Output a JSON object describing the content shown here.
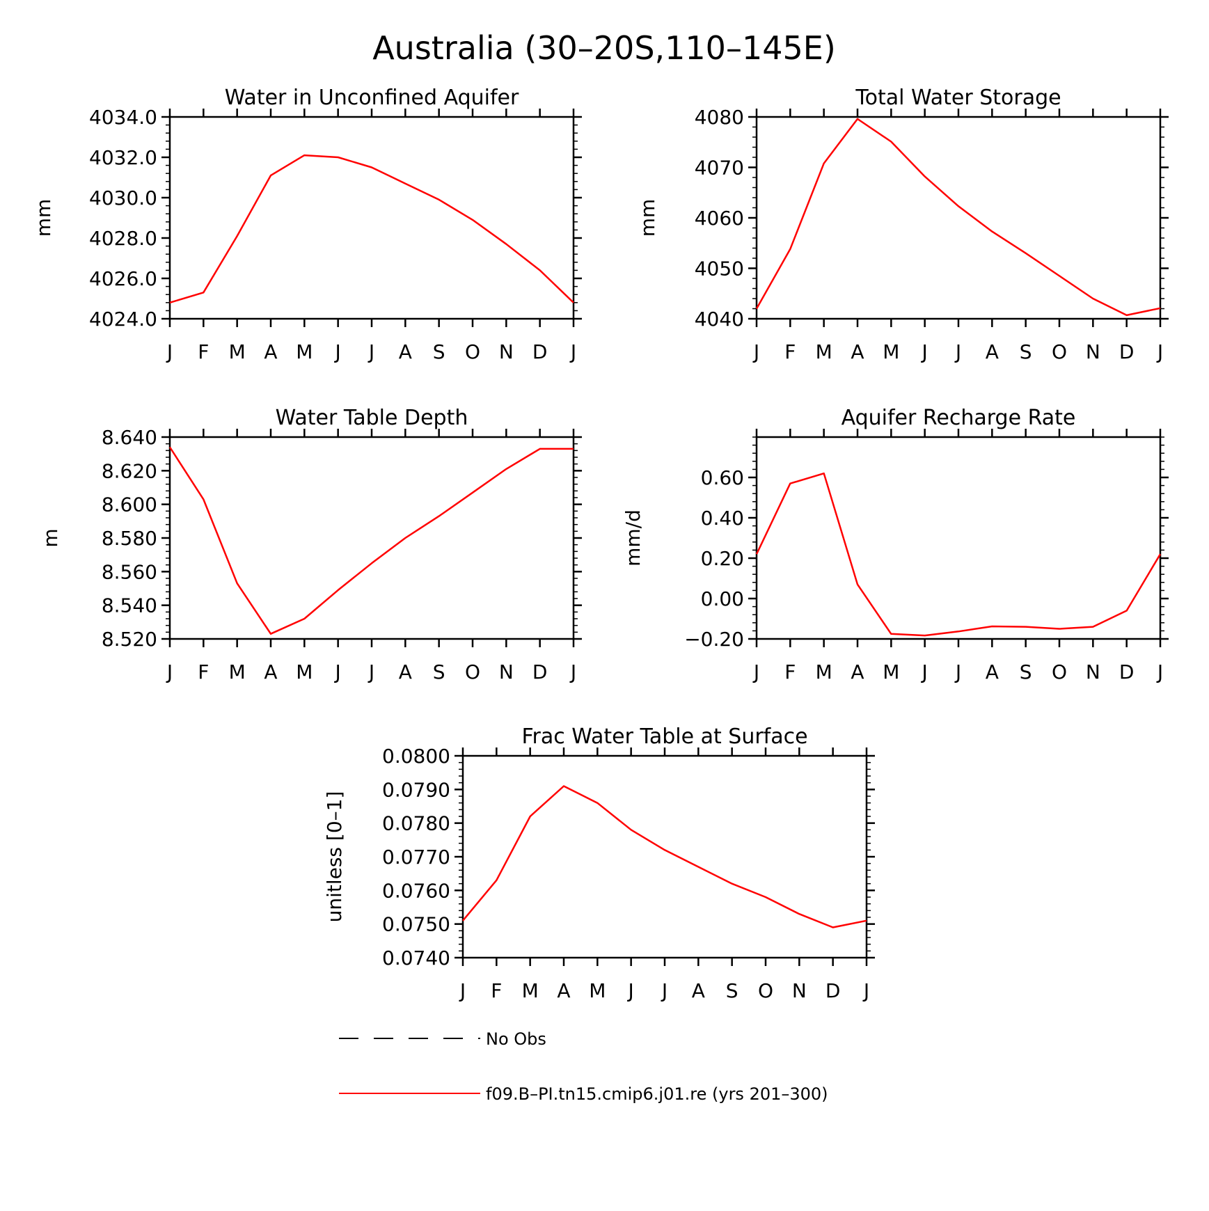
{
  "figure_title": "Australia (30–20S,110–145E)",
  "colors": {
    "model": "#ff0000",
    "obs": "#000000",
    "axis": "#000000"
  },
  "legend": {
    "entries": [
      {
        "label": "No Obs",
        "style": "dashed",
        "color": "#000000"
      },
      {
        "label": "f09.B–PI.tn15.cmip6.j01.re (yrs 201–300)",
        "style": "solid",
        "color": "#ff0000"
      }
    ]
  },
  "chart_data": [
    {
      "type": "line",
      "title": "Water in Unconfined Aquifer",
      "ylabel": "mm",
      "categories": [
        "J",
        "F",
        "M",
        "A",
        "M",
        "J",
        "J",
        "A",
        "S",
        "O",
        "N",
        "D",
        "J"
      ],
      "ylim": [
        4024.0,
        4034.0
      ],
      "yticks": [
        "4024.0",
        "4026.0",
        "4028.0",
        "4030.0",
        "4032.0",
        "4034.0"
      ],
      "series": [
        {
          "values": [
            4024.8,
            4025.3,
            4028.1,
            4031.1,
            4032.1,
            4032.0,
            4031.5,
            4030.7,
            4029.9,
            4028.9,
            4027.7,
            4026.4,
            4024.8
          ]
        }
      ]
    },
    {
      "type": "line",
      "title": "Total Water Storage",
      "ylabel": "mm",
      "categories": [
        "J",
        "F",
        "M",
        "A",
        "M",
        "J",
        "J",
        "A",
        "S",
        "O",
        "N",
        "D",
        "J"
      ],
      "ylim": [
        4040,
        4080
      ],
      "yticks": [
        "4040",
        "4050",
        "4060",
        "4070",
        "4080"
      ],
      "series": [
        {
          "values": [
            4042.0,
            4053.8,
            4070.8,
            4079.6,
            4075.1,
            4068.2,
            4062.3,
            4057.3,
            4053.0,
            4048.5,
            4044.0,
            4040.7,
            4042.1
          ]
        }
      ]
    },
    {
      "type": "line",
      "title": "Water Table Depth",
      "ylabel": "m",
      "categories": [
        "J",
        "F",
        "M",
        "A",
        "M",
        "J",
        "J",
        "A",
        "S",
        "O",
        "N",
        "D",
        "J"
      ],
      "ylim": [
        8.52,
        8.64
      ],
      "yticks": [
        "8.520",
        "8.540",
        "8.560",
        "8.580",
        "8.600",
        "8.620",
        "8.640"
      ],
      "series": [
        {
          "values": [
            8.634,
            8.603,
            8.553,
            8.523,
            8.532,
            8.549,
            8.565,
            8.58,
            8.593,
            8.607,
            8.621,
            8.633,
            8.633
          ]
        }
      ]
    },
    {
      "type": "line",
      "title": "Aquifer Recharge Rate",
      "ylabel": "mm/d",
      "categories": [
        "J",
        "F",
        "M",
        "A",
        "M",
        "J",
        "J",
        "A",
        "S",
        "O",
        "N",
        "D",
        "J"
      ],
      "ylim": [
        -0.2,
        0.8
      ],
      "yticks": [
        "−0.20",
        "0.00",
        "0.20",
        "0.40",
        "0.60"
      ],
      "ytick_values": [
        -0.2,
        0.0,
        0.2,
        0.4,
        0.6
      ],
      "series": [
        {
          "values": [
            0.22,
            0.57,
            0.62,
            0.07,
            -0.175,
            -0.183,
            -0.163,
            -0.138,
            -0.14,
            -0.15,
            -0.14,
            -0.06,
            0.22
          ]
        }
      ]
    },
    {
      "type": "line",
      "title": "Frac Water Table at Surface",
      "ylabel": "unitless [0–1]",
      "categories": [
        "J",
        "F",
        "M",
        "A",
        "M",
        "J",
        "J",
        "A",
        "S",
        "O",
        "N",
        "D",
        "J"
      ],
      "ylim": [
        0.074,
        0.08
      ],
      "yticks": [
        "0.0740",
        "0.0750",
        "0.0760",
        "0.0770",
        "0.0780",
        "0.0790",
        "0.0800"
      ],
      "series": [
        {
          "values": [
            0.0751,
            0.0763,
            0.0782,
            0.0791,
            0.0786,
            0.0778,
            0.0772,
            0.0767,
            0.0762,
            0.0758,
            0.0753,
            0.0749,
            0.0751
          ]
        }
      ]
    }
  ]
}
